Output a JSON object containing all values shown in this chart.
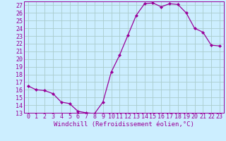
{
  "x": [
    0,
    1,
    2,
    3,
    4,
    5,
    6,
    7,
    8,
    9,
    10,
    11,
    12,
    13,
    14,
    15,
    16,
    17,
    18,
    19,
    20,
    21,
    22,
    23
  ],
  "y": [
    16.5,
    16.0,
    15.9,
    15.5,
    14.4,
    14.2,
    13.2,
    13.0,
    12.9,
    14.4,
    18.3,
    20.5,
    23.1,
    25.7,
    27.2,
    27.3,
    26.8,
    27.2,
    27.1,
    26.0,
    24.0,
    23.5,
    21.8,
    21.7
  ],
  "line_color": "#990099",
  "marker": "D",
  "marker_size": 2.0,
  "bg_color": "#cceeff",
  "grid_color": "#aacccc",
  "xlabel": "Windchill (Refroidissement éolien,°C)",
  "xlabel_fontsize": 6.5,
  "tick_fontsize": 6.0,
  "ylim": [
    13,
    27.5
  ],
  "yticks": [
    13,
    14,
    15,
    16,
    17,
    18,
    19,
    20,
    21,
    22,
    23,
    24,
    25,
    26,
    27
  ],
  "xlim": [
    -0.5,
    23.5
  ],
  "xticks": [
    0,
    1,
    2,
    3,
    4,
    5,
    6,
    7,
    8,
    9,
    10,
    11,
    12,
    13,
    14,
    15,
    16,
    17,
    18,
    19,
    20,
    21,
    22,
    23
  ]
}
